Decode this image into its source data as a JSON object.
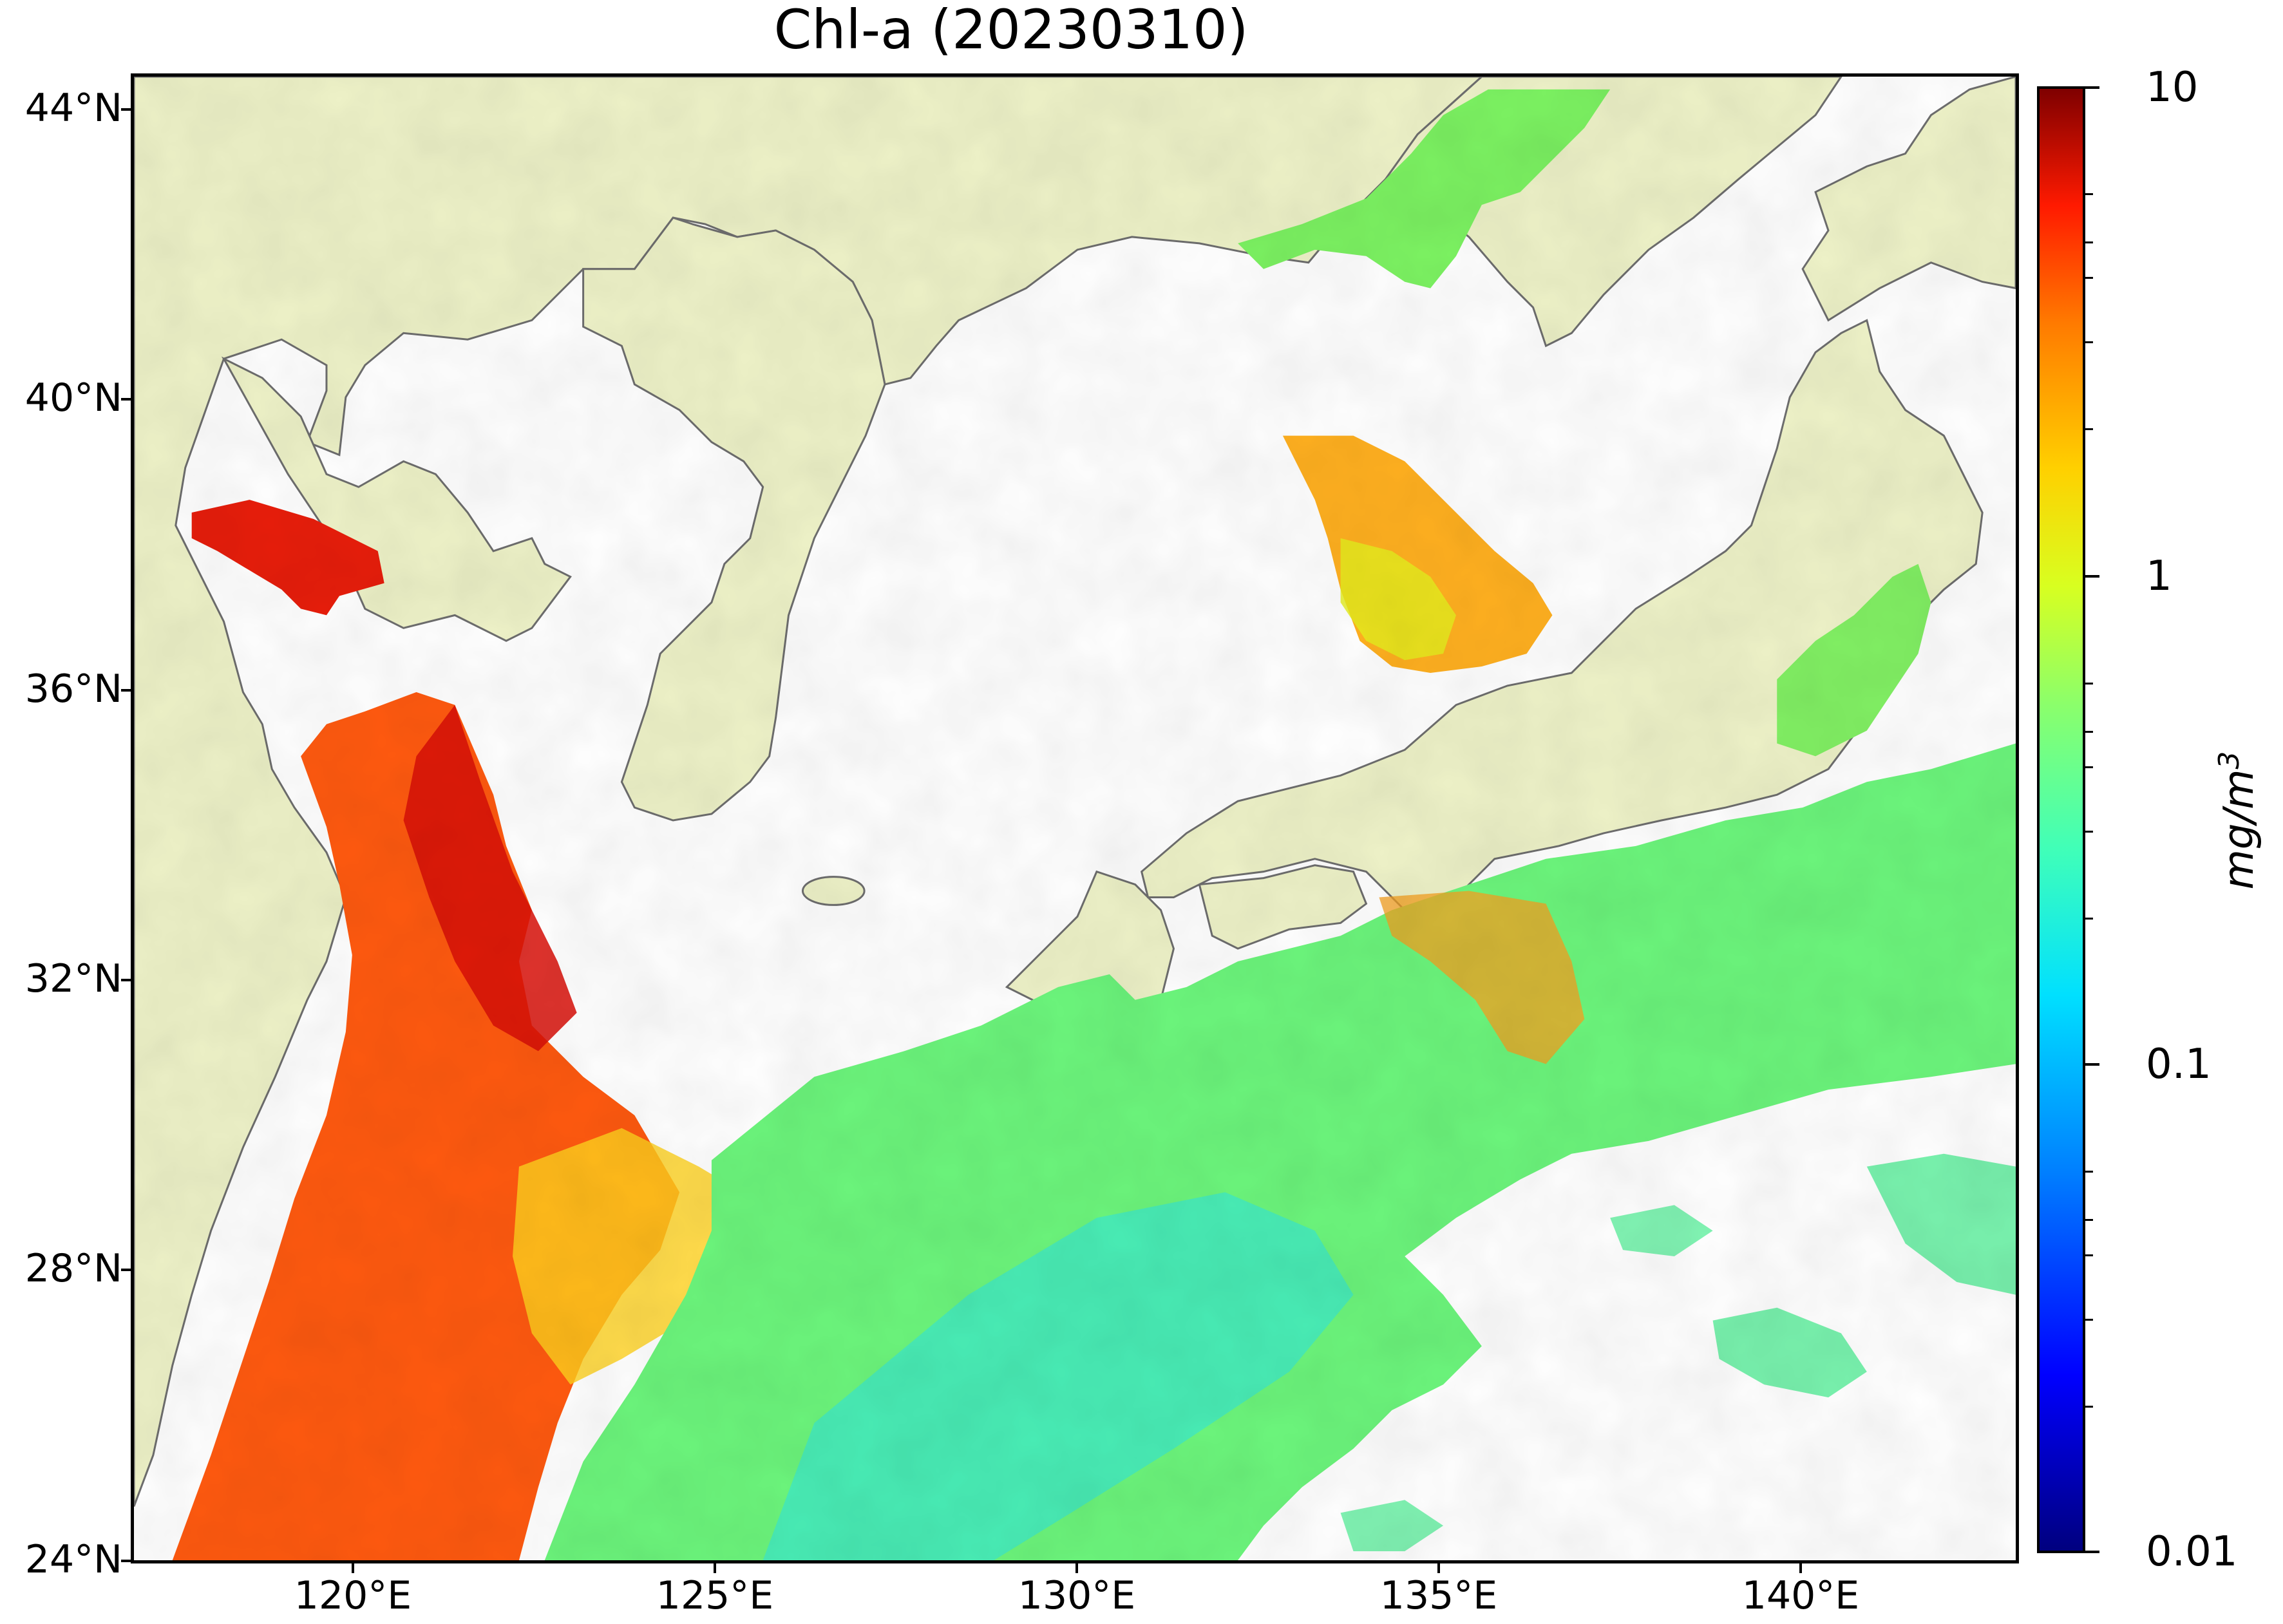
{
  "map": {
    "title": "Chl-a (20230310)",
    "lat_labels": [
      "44°N",
      "40°N",
      "36°N",
      "32°N",
      "28°N",
      "24°N"
    ],
    "lon_labels": [
      "120°E",
      "125°E",
      "130°E",
      "135°E",
      "140°E"
    ],
    "extent": {
      "lon_min": 117,
      "lon_max": 143,
      "lat_min": 24,
      "lat_max": 44.5
    },
    "colors": {
      "land": "#eef2c8",
      "coast": "#6e6e6e",
      "no_data": "#ffffff"
    }
  },
  "colorbar": {
    "scale": "log",
    "min": 0.01,
    "max": 10,
    "tick_labels": [
      "10",
      "1",
      "0.1",
      "0.01"
    ],
    "unit": "mg/m3",
    "colormap": "jet"
  }
}
